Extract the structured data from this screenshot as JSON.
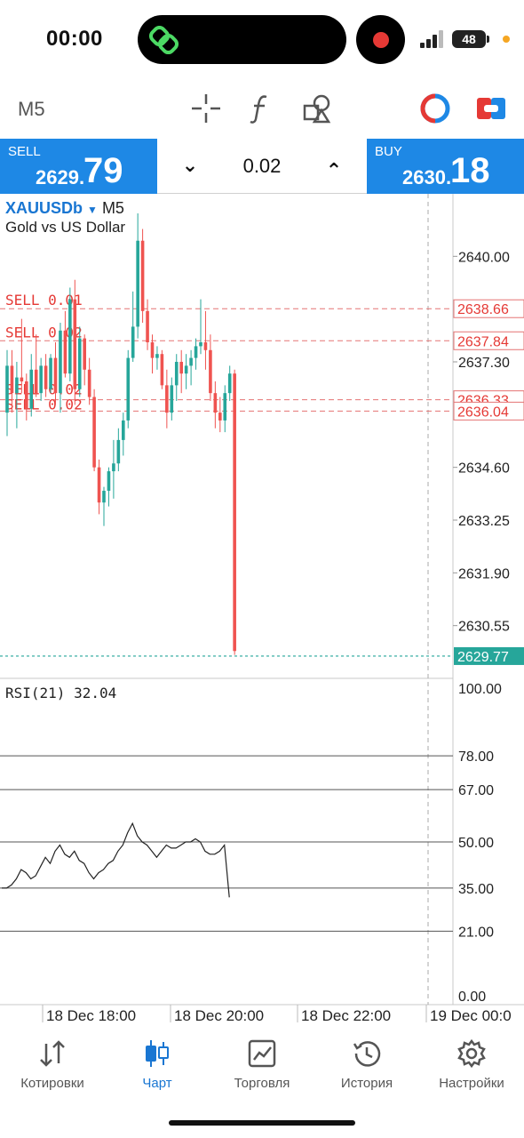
{
  "status": {
    "time": "00:00",
    "battery": "48"
  },
  "toolbar": {
    "timeframe": "M5"
  },
  "trade": {
    "sell_label": "SELL",
    "sell_price_small": "2629.",
    "sell_price_big": "79",
    "buy_label": "BUY",
    "buy_price_small": "2630.",
    "buy_price_big": "18",
    "lot": "0.02",
    "lot_down": "⌄",
    "lot_up": "⌃"
  },
  "chart": {
    "symbol": "XAUUSDb",
    "symbol_arrow": "▼",
    "timeframe": "M5",
    "description": "Gold vs US Dollar",
    "current_price_label": "2629.77",
    "price_ticks": [
      "2640.00",
      "2637.30",
      "2634.60",
      "2633.25",
      "2631.90",
      "2630.55"
    ],
    "order_lines": [
      {
        "label": "SELL 0.01",
        "price": "2638.66"
      },
      {
        "label": "SELL 0.02",
        "price": "2637.84"
      },
      {
        "label": "SELL 0.02",
        "price": "2636.33"
      },
      {
        "label": "SELL 0.02",
        "price": "2636.04"
      }
    ],
    "time_labels": [
      "18 Dec 18:00",
      "18 Dec 20:00",
      "18 Dec 22:00",
      "19 Dec 00:0"
    ],
    "rsi_label": "RSI(21) 32.04",
    "rsi_levels": [
      "100.00",
      "78.00",
      "67.00",
      "50.00",
      "35.00",
      "21.00",
      "0.00"
    ],
    "colors": {
      "bull": "#26a69a",
      "bear": "#ef5350",
      "order_line": "#e57373",
      "bid_line": "#26a69a"
    }
  },
  "chart_data": {
    "type": "candlestick",
    "price_ylim": [
      2629.2,
      2641.6
    ],
    "candles": [
      [
        2636.0,
        2637.6,
        2635.4,
        2637.2
      ],
      [
        2637.2,
        2637.6,
        2636.0,
        2636.5
      ],
      [
        2636.5,
        2637.3,
        2635.6,
        2636.9
      ],
      [
        2636.9,
        2638.4,
        2636.5,
        2636.8
      ],
      [
        2636.8,
        2637.0,
        2635.8,
        2636.1
      ],
      [
        2636.1,
        2637.5,
        2635.9,
        2637.1
      ],
      [
        2637.1,
        2638.0,
        2636.4,
        2636.5
      ],
      [
        2636.5,
        2637.4,
        2636.3,
        2637.2
      ],
      [
        2637.2,
        2637.5,
        2636.4,
        2636.6
      ],
      [
        2636.6,
        2637.5,
        2636.5,
        2637.4
      ],
      [
        2637.4,
        2637.8,
        2636.2,
        2636.5
      ],
      [
        2636.5,
        2638.3,
        2636.0,
        2638.1
      ],
      [
        2638.1,
        2638.6,
        2636.9,
        2637.0
      ],
      [
        2637.0,
        2639.2,
        2636.8,
        2638.9
      ],
      [
        2638.9,
        2639.4,
        2636.2,
        2636.6
      ],
      [
        2636.6,
        2638.2,
        2636.4,
        2637.9
      ],
      [
        2637.9,
        2638.0,
        2636.7,
        2637.1
      ],
      [
        2637.1,
        2637.4,
        2636.2,
        2636.4
      ],
      [
        2636.4,
        2636.6,
        2634.5,
        2634.6
      ],
      [
        2634.6,
        2634.8,
        2633.4,
        2633.7
      ],
      [
        2633.7,
        2634.1,
        2633.1,
        2634.0
      ],
      [
        2634.0,
        2634.6,
        2633.6,
        2634.5
      ],
      [
        2634.5,
        2635.3,
        2633.8,
        2634.7
      ],
      [
        2634.7,
        2635.6,
        2634.5,
        2635.3
      ],
      [
        2635.3,
        2636.0,
        2634.9,
        2635.8
      ],
      [
        2635.8,
        2637.6,
        2635.6,
        2637.4
      ],
      [
        2637.4,
        2639.1,
        2637.3,
        2638.2
      ],
      [
        2638.2,
        2641.1,
        2637.9,
        2640.4
      ],
      [
        2640.4,
        2640.7,
        2638.3,
        2638.6
      ],
      [
        2638.6,
        2638.9,
        2637.6,
        2637.8
      ],
      [
        2637.8,
        2638.0,
        2637.0,
        2637.4
      ],
      [
        2637.4,
        2637.7,
        2637.1,
        2637.5
      ],
      [
        2637.5,
        2637.6,
        2636.6,
        2636.7
      ],
      [
        2636.7,
        2637.1,
        2635.6,
        2636.0
      ],
      [
        2636.0,
        2636.9,
        2635.8,
        2636.7
      ],
      [
        2636.7,
        2637.5,
        2636.3,
        2637.3
      ],
      [
        2637.3,
        2637.6,
        2636.5,
        2637.0
      ],
      [
        2637.0,
        2637.5,
        2636.6,
        2637.2
      ],
      [
        2637.2,
        2637.6,
        2636.7,
        2637.4
      ],
      [
        2637.4,
        2637.9,
        2637.1,
        2637.7
      ],
      [
        2637.7,
        2638.9,
        2637.5,
        2637.8
      ],
      [
        2637.8,
        2638.6,
        2637.1,
        2637.6
      ],
      [
        2637.6,
        2638.0,
        2636.3,
        2636.5
      ],
      [
        2636.5,
        2636.8,
        2635.6,
        2636.0
      ],
      [
        2636.0,
        2636.4,
        2635.5,
        2635.8
      ],
      [
        2635.8,
        2636.7,
        2635.5,
        2636.5
      ],
      [
        2636.5,
        2637.2,
        2636.3,
        2637.0
      ],
      [
        2637.0,
        2637.1,
        2629.8,
        2629.9
      ]
    ],
    "rsi_ylim": [
      0,
      100
    ],
    "rsi": [
      35,
      35,
      36,
      38,
      41,
      40,
      38,
      39,
      42,
      45,
      43,
      47,
      49,
      46,
      45,
      47,
      44,
      43,
      40,
      38,
      40,
      41,
      43,
      44,
      47,
      49,
      53,
      56,
      52,
      50,
      49,
      47,
      45,
      47,
      49,
      48,
      48,
      49,
      50,
      50,
      51,
      50,
      47,
      46,
      46,
      47,
      49,
      32
    ]
  }
}
